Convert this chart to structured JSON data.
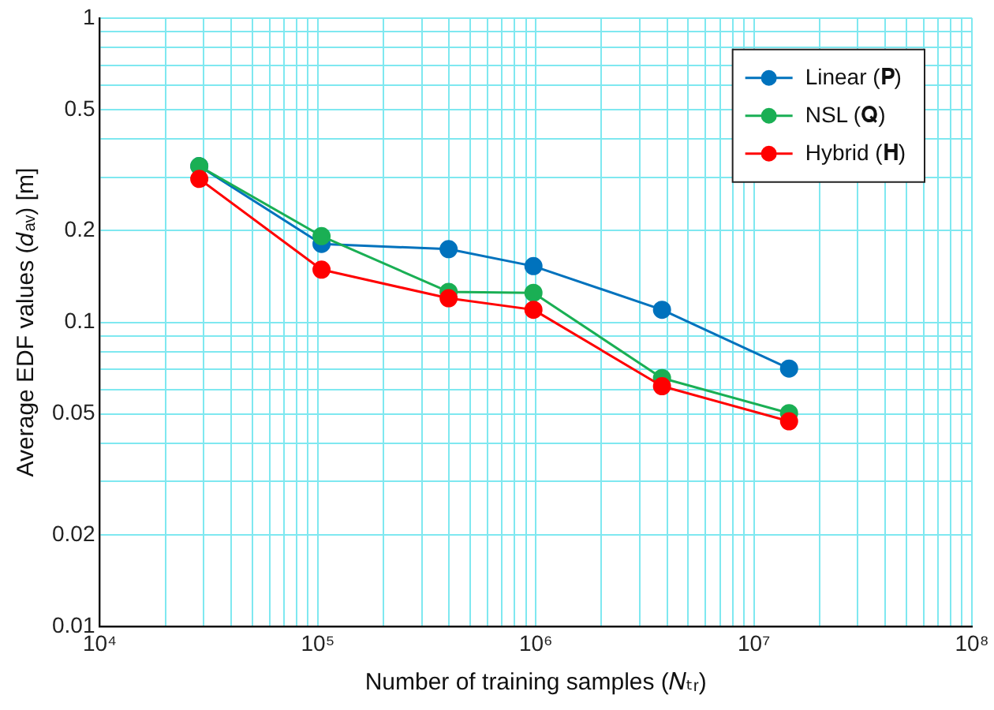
{
  "chart_data": {
    "type": "line",
    "xlabel": "Number of training samples (𝑁ₜᵣ)",
    "ylabel": "Average EDF values (𝑑ₐᵥ) [m]",
    "log": "xy",
    "grid": true,
    "legend": "top right",
    "marker": "circle",
    "line_style": "solid",
    "xlim": [
      10000,
      100000000
    ],
    "ylim": [
      0.01,
      1
    ],
    "xticks": [
      {
        "value": 10000,
        "label": "10⁴"
      },
      {
        "value": 20000,
        "label": null
      },
      {
        "value": 30000,
        "label": null
      },
      {
        "value": 40000,
        "label": null
      },
      {
        "value": 50000,
        "label": null
      },
      {
        "value": 60000,
        "label": null
      },
      {
        "value": 70000,
        "label": null
      },
      {
        "value": 80000,
        "label": null
      },
      {
        "value": 90000,
        "label": null
      },
      {
        "value": 100000,
        "label": "10⁵"
      },
      {
        "value": 200000,
        "label": null
      },
      {
        "value": 300000,
        "label": null
      },
      {
        "value": 400000,
        "label": null
      },
      {
        "value": 500000,
        "label": null
      },
      {
        "value": 600000,
        "label": null
      },
      {
        "value": 700000,
        "label": null
      },
      {
        "value": 800000,
        "label": null
      },
      {
        "value": 900000,
        "label": null
      },
      {
        "value": 1000000,
        "label": "10⁶"
      },
      {
        "value": 2000000,
        "label": null
      },
      {
        "value": 3000000,
        "label": null
      },
      {
        "value": 4000000,
        "label": null
      },
      {
        "value": 5000000,
        "label": null
      },
      {
        "value": 6000000,
        "label": null
      },
      {
        "value": 7000000,
        "label": null
      },
      {
        "value": 8000000,
        "label": null
      },
      {
        "value": 9000000,
        "label": null
      },
      {
        "value": 10000000,
        "label": "10⁷"
      },
      {
        "value": 20000000,
        "label": null
      },
      {
        "value": 30000000,
        "label": null
      },
      {
        "value": 40000000,
        "label": null
      },
      {
        "value": 50000000,
        "label": null
      },
      {
        "value": 60000000,
        "label": null
      },
      {
        "value": 70000000,
        "label": null
      },
      {
        "value": 80000000,
        "label": null
      },
      {
        "value": 90000000,
        "label": null
      },
      {
        "value": 100000000,
        "label": "10⁸"
      }
    ],
    "yticks": [
      0.01,
      0.02,
      {
        "value": 0.03,
        "label": null
      },
      {
        "value": 0.04,
        "label": null
      },
      0.05,
      {
        "value": 0.06,
        "label": null
      },
      {
        "value": 0.07,
        "label": null
      },
      {
        "value": 0.08,
        "label": null
      },
      {
        "value": 0.09,
        "label": null
      },
      0.1,
      0.2,
      {
        "value": 0.3,
        "label": null
      },
      {
        "value": 0.4,
        "label": null
      },
      0.5,
      {
        "value": 0.6,
        "label": null
      },
      {
        "value": 0.7,
        "label": null
      },
      {
        "value": 0.8,
        "label": null
      },
      {
        "value": 0.9,
        "label": null
      },
      1
    ],
    "x": [
      28600,
      104000,
      398000,
      975000,
      3790000,
      14500000
    ],
    "series": [
      {
        "name": "Linear (𝐏)",
        "color": "#0072bd",
        "values": [
          0.326,
          0.181,
          0.174,
          0.153,
          0.11,
          0.0705
        ]
      },
      {
        "name": "NSL (𝐐)",
        "color": "#1aaf54",
        "values": [
          0.326,
          0.192,
          0.126,
          0.125,
          0.0656,
          0.0503
        ]
      },
      {
        "name": "Hybrid (𝐇)",
        "color": "#ff0000",
        "values": [
          0.296,
          0.149,
          0.12,
          0.11,
          0.0617,
          0.0473
        ]
      }
    ]
  }
}
